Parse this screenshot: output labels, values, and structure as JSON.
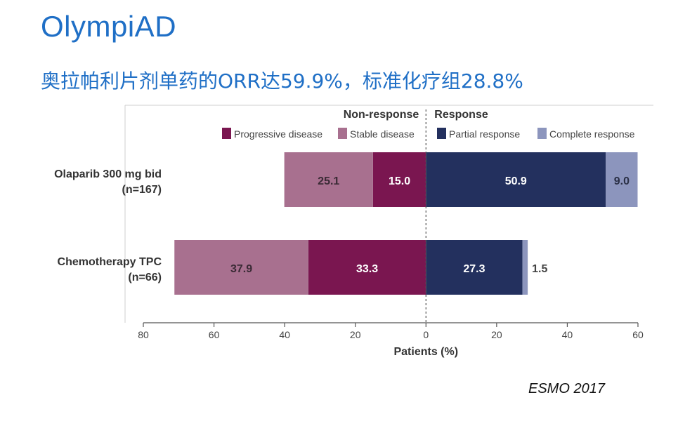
{
  "slide": {
    "title": "OlympiAD",
    "subtitle": "奥拉帕利片剂单药的ORR达59.9%，标准化疗组28.8%",
    "source": "ESMO 2017"
  },
  "chart_data": {
    "type": "bar",
    "orientation": "horizontal-diverging",
    "categories": [
      {
        "label": "Olaparib 300 mg bid",
        "sublabel": "(n=167)"
      },
      {
        "label": "Chemotherapy TPC",
        "sublabel": "(n=66)"
      }
    ],
    "groups": [
      {
        "name": "Non-response",
        "side": "left"
      },
      {
        "name": "Response",
        "side": "right"
      }
    ],
    "series": [
      {
        "name": "Progressive disease",
        "side": "left",
        "color": "#7a1650",
        "label_color": "#ffffff",
        "values": [
          15.0,
          33.3
        ]
      },
      {
        "name": "Stable disease",
        "side": "left",
        "color": "#a8708f",
        "label_color": "#3a2a35",
        "values": [
          25.1,
          37.9
        ]
      },
      {
        "name": "Partial response",
        "side": "right",
        "color": "#23305e",
        "label_color": "#ffffff",
        "values": [
          50.9,
          27.3
        ]
      },
      {
        "name": "Complete response",
        "side": "right",
        "color": "#8c95bd",
        "label_color": "#2a2f45",
        "values": [
          9.0,
          1.5
        ]
      }
    ],
    "data_labels": [
      [
        "15.0",
        "33.3"
      ],
      [
        "25.1",
        "37.9"
      ],
      [
        "50.9",
        "27.3"
      ],
      [
        "9.0",
        "1.5"
      ]
    ],
    "xlabel": "Patients (%)",
    "xlim": [
      -80,
      60
    ],
    "xticks": [
      {
        "value": -80,
        "label": "80"
      },
      {
        "value": -60,
        "label": "60"
      },
      {
        "value": -40,
        "label": "40"
      },
      {
        "value": -20,
        "label": "20"
      },
      {
        "value": 0,
        "label": "0"
      },
      {
        "value": 20,
        "label": "20"
      },
      {
        "value": 40,
        "label": "40"
      },
      {
        "value": 60,
        "label": "60"
      }
    ],
    "grid": false,
    "legend_position": "top"
  }
}
